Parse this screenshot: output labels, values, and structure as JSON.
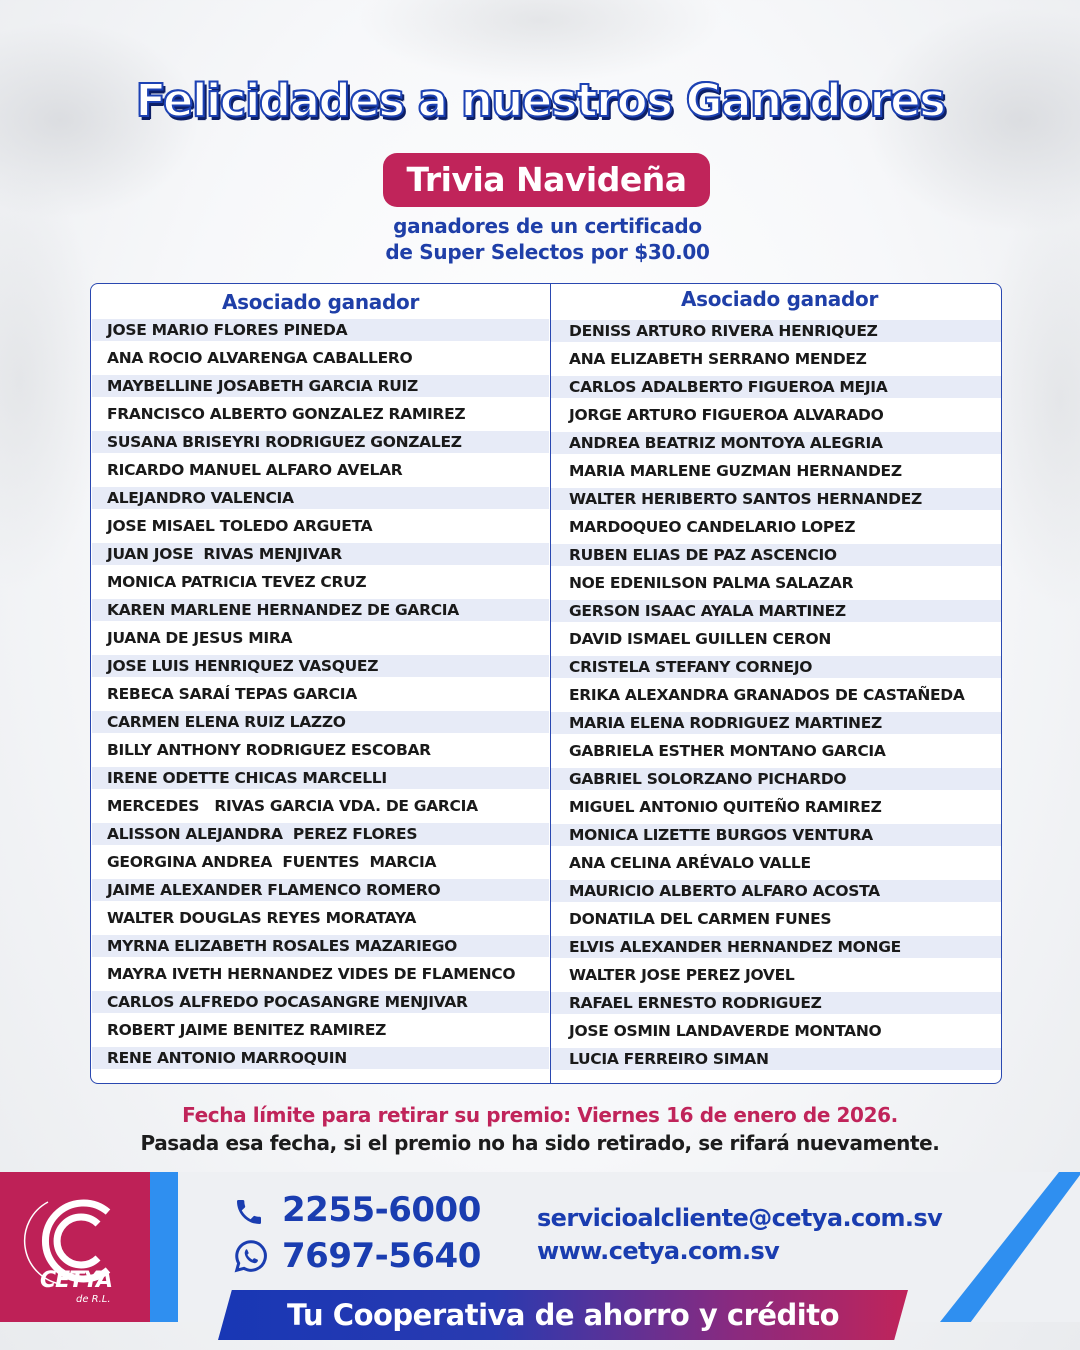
{
  "header": {
    "title": "Felicidades a nuestros Ganadores",
    "badge": "Trivia Navideña",
    "subtitle_line1": "ganadores de un certificado",
    "subtitle_line2": "de Super Selectos por $30.00"
  },
  "table": {
    "left_header": "Asociado ganador",
    "right_header": "Asociado ganador",
    "left": [
      "JOSE MARIO FLORES PINEDA",
      "ANA ROCIO ALVARENGA CABALLERO",
      "MAYBELLINE JOSABETH GARCIA RUIZ",
      "FRANCISCO ALBERTO GONZALEZ RAMIREZ",
      "SUSANA BRISEYRI RODRIGUEZ GONZALEZ",
      "RICARDO MANUEL ALFARO AVELAR",
      "ALEJANDRO VALENCIA",
      "JOSE MISAEL TOLEDO ARGUETA",
      "JUAN JOSE  RIVAS MENJIVAR",
      "MONICA PATRICIA TEVEZ CRUZ",
      "KAREN MARLENE HERNANDEZ DE GARCIA",
      "JUANA DE JESUS MIRA",
      "JOSE LUIS HENRIQUEZ VASQUEZ",
      "REBECA SARAÍ TEPAS GARCIA",
      "CARMEN ELENA RUIZ LAZZO",
      "BILLY ANTHONY RODRIGUEZ ESCOBAR",
      "IRENE ODETTE CHICAS MARCELLI",
      "MERCEDES   RIVAS GARCIA VDA. DE GARCIA",
      "ALISSON ALEJANDRA  PEREZ FLORES",
      "GEORGINA ANDREA  FUENTES  MARCIA",
      "JAIME ALEXANDER FLAMENCO ROMERO",
      "WALTER DOUGLAS REYES MORATAYA",
      "MYRNA ELIZABETH ROSALES MAZARIEGO",
      "MAYRA IVETH HERNANDEZ VIDES DE FLAMENCO",
      "CARLOS ALFREDO POCASANGRE MENJIVAR",
      "ROBERT JAIME BENITEZ RAMIREZ",
      "RENE ANTONIO MARROQUIN"
    ],
    "right": [
      "DENISS ARTURO RIVERA HENRIQUEZ",
      "ANA ELIZABETH SERRANO MENDEZ",
      "CARLOS ADALBERTO FIGUEROA MEJIA",
      "JORGE ARTURO FIGUEROA ALVARADO",
      "ANDREA BEATRIZ MONTOYA ALEGRIA",
      "MARIA MARLENE GUZMAN HERNANDEZ",
      "WALTER HERIBERTO SANTOS HERNANDEZ",
      "MARDOQUEO CANDELARIO LOPEZ",
      "RUBEN ELIAS DE PAZ ASCENCIO",
      "NOE EDENILSON PALMA SALAZAR",
      "GERSON ISAAC AYALA MARTINEZ",
      "DAVID ISMAEL GUILLEN CERON",
      "CRISTELA STEFANY CORNEJO",
      "ERIKA ALEXANDRA GRANADOS DE CASTAÑEDA",
      "MARIA ELENA RODRIGUEZ MARTINEZ",
      "GABRIELA ESTHER MONTANO GARCIA",
      "GABRIEL SOLORZANO PICHARDO",
      "MIGUEL ANTONIO QUITEÑO RAMIREZ",
      "MONICA LIZETTE BURGOS VENTURA",
      "ANA CELINA ARÉVALO VALLE",
      "MAURICIO ALBERTO ALFARO ACOSTA",
      "DONATILA DEL CARMEN FUNES",
      "ELVIS ALEXANDER HERNANDEZ MONGE",
      "WALTER JOSE PEREZ JOVEL",
      "RAFAEL ERNESTO RODRIGUEZ",
      "JOSE OSMIN LANDAVERDE MONTANO",
      "LUCIA FERREIRO SIMAN"
    ]
  },
  "notes": {
    "deadline": "Fecha límite para retirar su premio: Viernes 16 de enero de 2026.",
    "warning": "Pasada esa fecha, si el premio no ha sido retirado, se rifará nuevamente."
  },
  "footer": {
    "logo_text": "CETYA",
    "logo_subtext": "de R.L.",
    "phone": "2255-6000",
    "whatsapp": "7697-5640",
    "email": "servicioalcliente@cetya.com.sv",
    "website": "www.cetya.com.sv",
    "tagline": "Tu Cooperativa de ahorro y crédito",
    "phone_icon": "phone-icon",
    "whatsapp_icon": "whatsapp-icon"
  },
  "colors": {
    "brand_blue": "#1f3fa8",
    "brand_crimson": "#c0245a",
    "accent_blue": "#2f8ff0",
    "row_band": "#e7ebf7"
  }
}
